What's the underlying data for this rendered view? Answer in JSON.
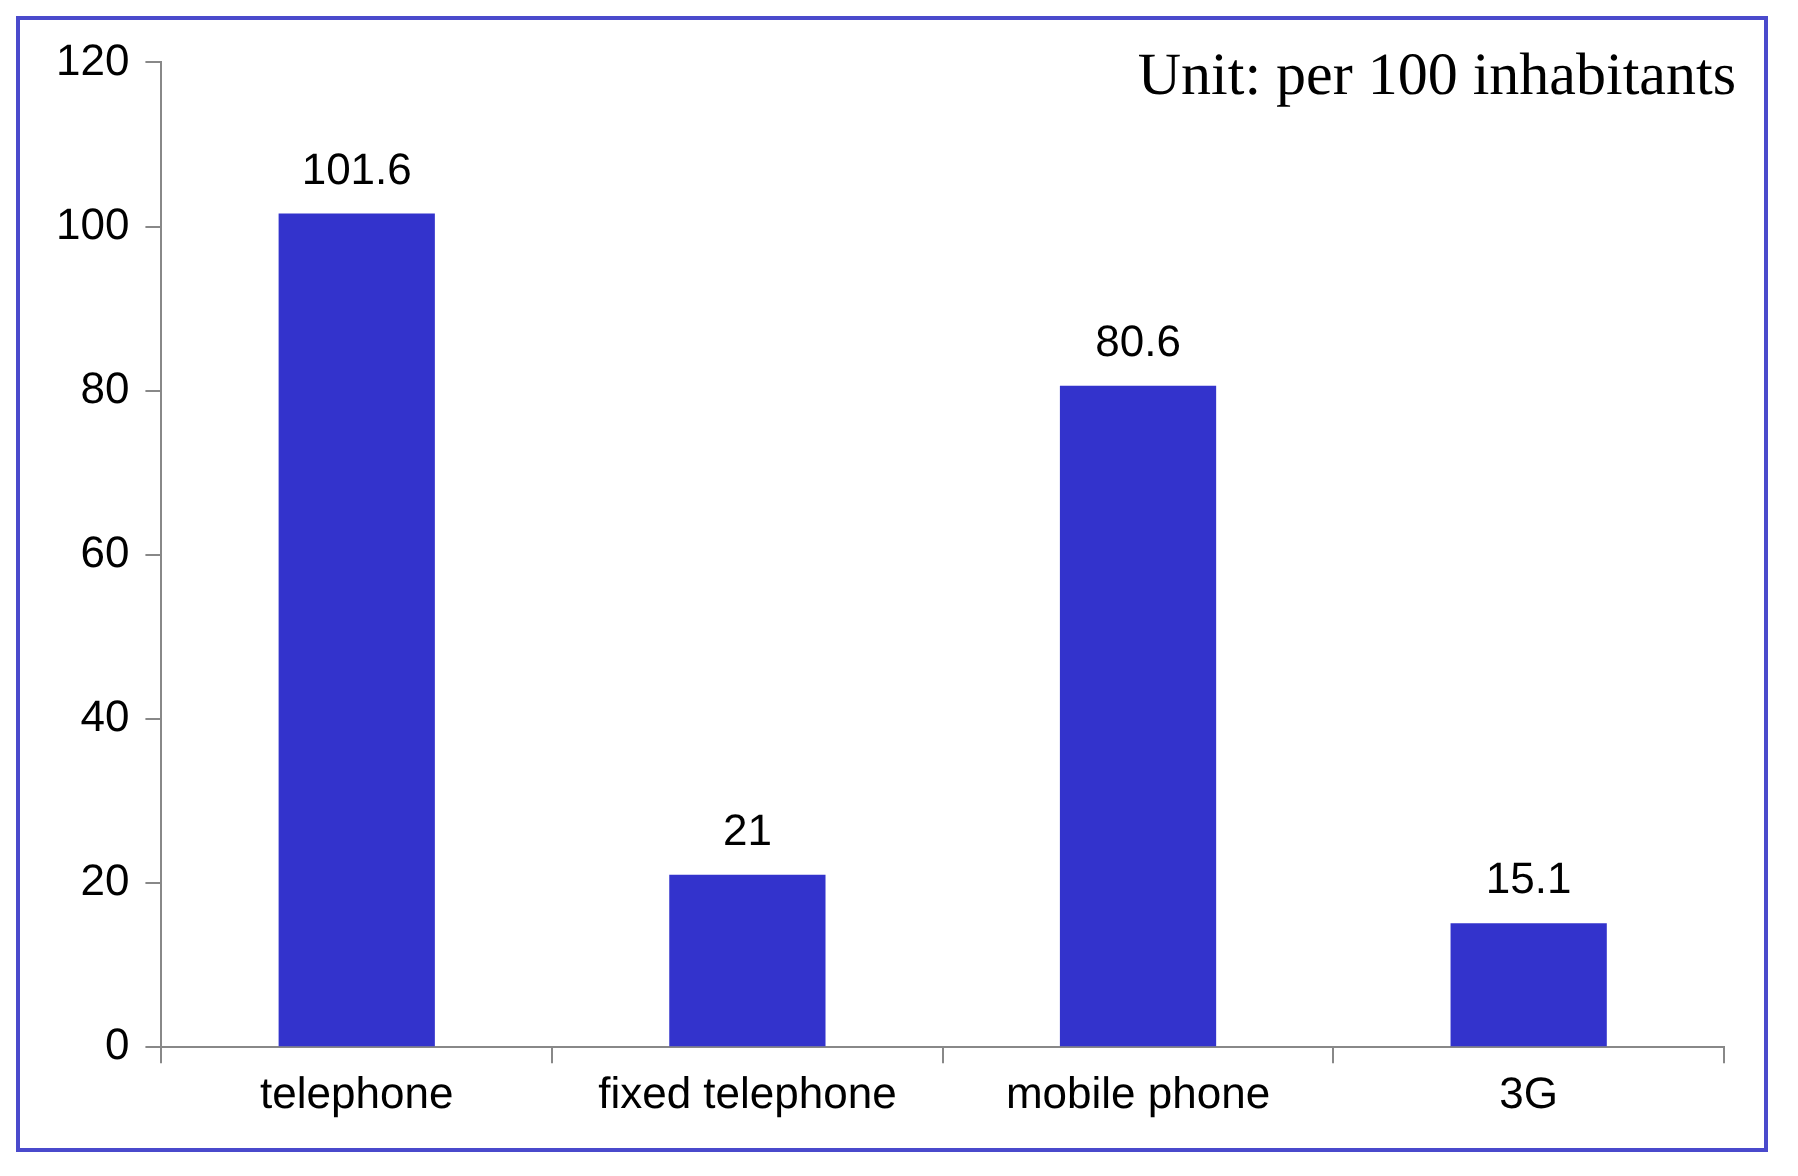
{
  "chart_data": {
    "type": "bar",
    "categories": [
      "telephone",
      "fixed telephone",
      "mobile phone",
      "3G"
    ],
    "values": [
      101.6,
      21,
      80.6,
      15.1
    ],
    "color": "#3333cc",
    "ylim": [
      0,
      120
    ],
    "yticks": [
      0,
      20,
      40,
      60,
      80,
      100,
      120
    ],
    "grid": false,
    "data_labels": true,
    "legend": false,
    "annotations": [
      "Unit: per 100 inhabitants"
    ]
  }
}
